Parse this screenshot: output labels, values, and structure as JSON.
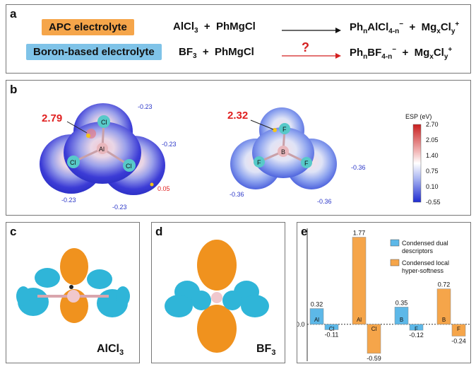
{
  "panel_a": {
    "label": "a",
    "row1": {
      "tag": "APC electrolyte",
      "tag_color": "#f5a54a",
      "r1": "AlCl",
      "r1_sub": "3",
      "plus1": "+",
      "r2": "PhMgCl",
      "p1a": "Ph",
      "p1a_sub": "n",
      "p1b": "AlCl",
      "p1b_sub": "4-n",
      "p1_sup": "−",
      "plus2": "+",
      "p2a": "Mg",
      "p2a_sub": "x",
      "p2b": "Cl",
      "p2b_sub": "y",
      "p2_sup": "+"
    },
    "row2": {
      "tag": "Boron-based electrolyte",
      "tag_color": "#7fc3e8",
      "r1": "BF",
      "r1_sub": "3",
      "plus1": "+",
      "r2": "PhMgCl",
      "question": "?",
      "p1a": "Ph",
      "p1a_sub": "n",
      "p1b": "BF",
      "p1b_sub": "4-n",
      "p1_sup": "−",
      "plus2": "+",
      "p2a": "Mg",
      "p2a_sub": "x",
      "p2b": "Cl",
      "p2b_sub": "y",
      "p2_sup": "+"
    }
  },
  "panel_b": {
    "label": "b",
    "alcl3": {
      "max_value": "2.79",
      "center": "Al",
      "ligands": [
        "Cl",
        "Cl",
        "Cl"
      ],
      "values": [
        "-0.23",
        "-0.23",
        "-0.23",
        "-0.23",
        "0.05"
      ]
    },
    "bf3": {
      "max_value": "2.32",
      "center": "B",
      "ligands": [
        "F",
        "F",
        "F"
      ],
      "values": [
        "-0.36",
        "-0.36",
        "-0.36"
      ]
    },
    "colorbar": {
      "title": "ESP (eV)",
      "ticks": [
        "2.70",
        "2.05",
        "1.40",
        "0.75",
        "0.10",
        "-0.55"
      ]
    }
  },
  "panel_c": {
    "label": "c",
    "molecule": "AlCl",
    "molecule_sub": "3"
  },
  "panel_d": {
    "label": "d",
    "molecule": "BF",
    "molecule_sub": "3"
  },
  "panel_e": {
    "label": "e",
    "legend": [
      {
        "name_line1": "Condensed dual",
        "name_line2": "descriptors",
        "color": "#5db8e8"
      },
      {
        "name_line1": "Condensed local",
        "name_line2": "hyper-softness",
        "color": "#f5a54a"
      }
    ],
    "chart_data": {
      "type": "bar",
      "ylim": [
        -0.75,
        1.95
      ],
      "zero_label": "0.0",
      "groups": [
        {
          "label": "AlCl3-dual",
          "bars": [
            {
              "atom": "Al",
              "value": 0.32,
              "label": "0.32"
            },
            {
              "atom": "Cl",
              "value": -0.11,
              "label": "-0.11"
            }
          ],
          "series": "dual"
        },
        {
          "label": "AlCl3-soft",
          "bars": [
            {
              "atom": "Al",
              "value": 1.77,
              "label": "1.77"
            },
            {
              "atom": "Cl",
              "value": -0.59,
              "label": "-0.59"
            }
          ],
          "series": "soft"
        },
        {
          "label": "BF3-dual",
          "bars": [
            {
              "atom": "B",
              "value": 0.35,
              "label": "0.35"
            },
            {
              "atom": "F",
              "value": -0.12,
              "label": "-0.12"
            }
          ],
          "series": "dual"
        },
        {
          "label": "BF3-soft",
          "bars": [
            {
              "atom": "B",
              "value": 0.72,
              "label": "0.72"
            },
            {
              "atom": "F",
              "value": -0.24,
              "label": "-0.24"
            }
          ],
          "series": "soft"
        }
      ]
    }
  }
}
